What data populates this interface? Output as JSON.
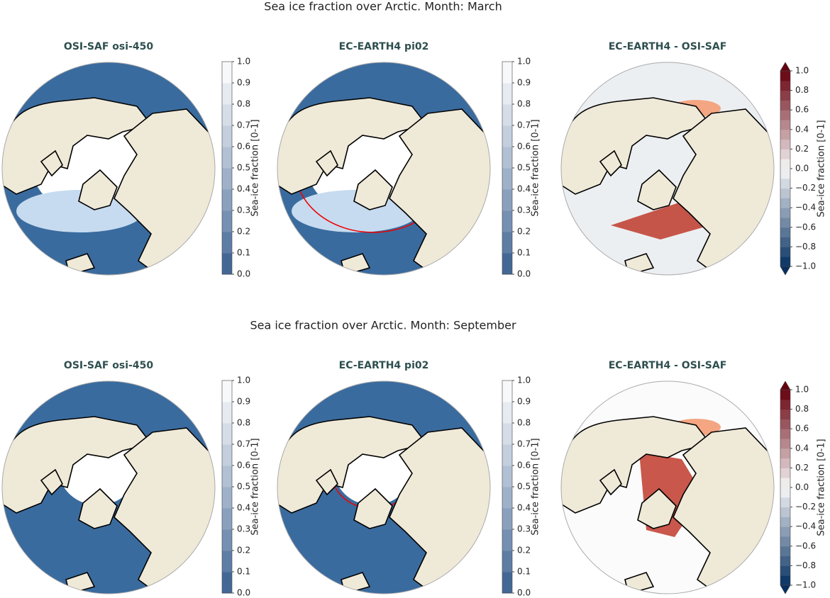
{
  "rows": [
    {
      "title": "Sea ice fraction over Arctic. Month: March",
      "panels": [
        {
          "title": "OSI-SAF osi-450",
          "colorbar": {
            "ticks": [
              "0.0",
              "0.1",
              "0.2",
              "0.3",
              "0.4",
              "0.5",
              "0.6",
              "0.7",
              "0.8",
              "0.9",
              "1.0"
            ],
            "label": "Sea-ice fraction [0-1]"
          }
        },
        {
          "title": "EC-EARTH4 pi02",
          "colorbar": {
            "ticks": [
              "0.0",
              "0.1",
              "0.2",
              "0.3",
              "0.4",
              "0.5",
              "0.6",
              "0.7",
              "0.8",
              "0.9",
              "1.0"
            ],
            "label": "Sea-ice fraction [0-1]"
          }
        },
        {
          "title": "EC-EARTH4 -  OSI-SAF",
          "colorbar": {
            "ticks": [
              "−1.0",
              "−0.8",
              "−0.6",
              "−0.4",
              "−0.2",
              "0.0",
              "0.2",
              "0.4",
              "0.6",
              "0.8",
              "1.0"
            ],
            "label": "Sea-ice fraction [0-1]"
          }
        }
      ]
    },
    {
      "title": "Sea ice fraction over Arctic. Month: September",
      "panels": [
        {
          "title": "OSI-SAF osi-450",
          "colorbar": {
            "ticks": [
              "0.0",
              "0.1",
              "0.2",
              "0.3",
              "0.4",
              "0.5",
              "0.6",
              "0.7",
              "0.8",
              "0.9",
              "1.0"
            ],
            "label": "Sea-ice fraction [0-1]"
          }
        },
        {
          "title": "EC-EARTH4 pi02",
          "colorbar": {
            "ticks": [
              "0.0",
              "0.1",
              "0.2",
              "0.3",
              "0.4",
              "0.5",
              "0.6",
              "0.7",
              "0.8",
              "0.9",
              "1.0"
            ],
            "label": "Sea-ice fraction [0-1]"
          }
        },
        {
          "title": "EC-EARTH4 -  OSI-SAF",
          "colorbar": {
            "ticks": [
              "−1.0",
              "−0.8",
              "−0.6",
              "−0.4",
              "−0.2",
              "0.0",
              "0.2",
              "0.4",
              "0.6",
              "0.8",
              "1.0"
            ],
            "label": "Sea-ice fraction [0-1]"
          }
        }
      ]
    }
  ]
}
